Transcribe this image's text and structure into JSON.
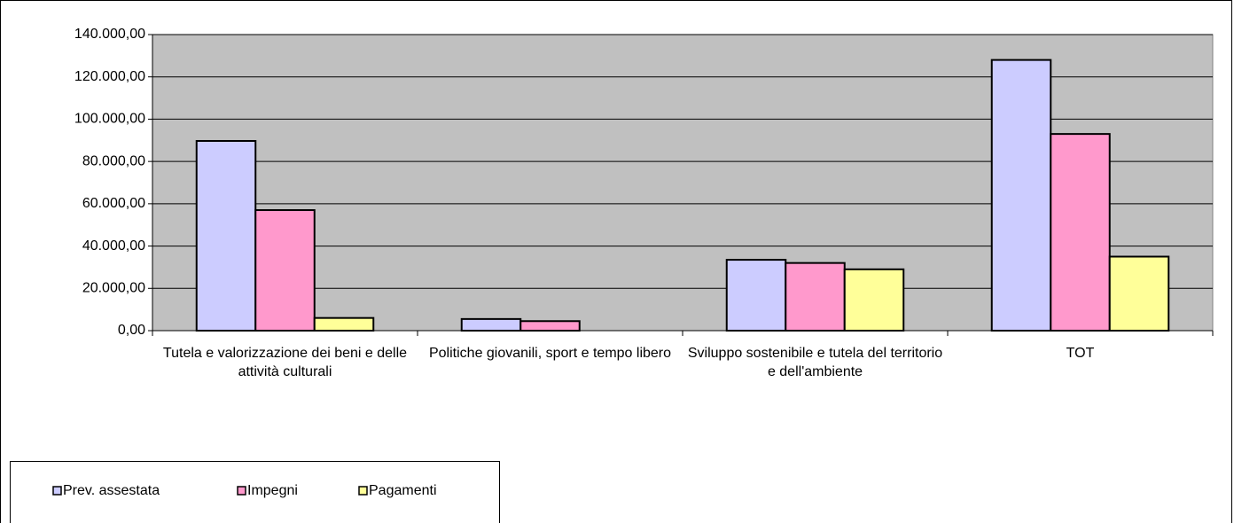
{
  "chart_data": {
    "type": "bar",
    "categories": [
      "Tutela e valorizzazione dei beni e delle attività culturali",
      "Politiche giovanili, sport e tempo libero",
      "Sviluppo sostenibile e tutela del territorio e dell'ambiente",
      "TOT"
    ],
    "series": [
      {
        "name": "Prev. assestata",
        "color": "#ccccff",
        "values": [
          89700,
          5500,
          33500,
          128000
        ]
      },
      {
        "name": "Impegni",
        "color": "#ff99cc",
        "values": [
          57000,
          4500,
          32000,
          93000
        ]
      },
      {
        "name": "Pagamenti",
        "color": "#ffff99",
        "values": [
          6000,
          0,
          29000,
          35000
        ]
      }
    ],
    "ylim": [
      0,
      140000
    ],
    "yticks": [
      {
        "value": 0,
        "label": "0,00"
      },
      {
        "value": 20000,
        "label": "20.000,00"
      },
      {
        "value": 40000,
        "label": "40.000,00"
      },
      {
        "value": 60000,
        "label": "60.000,00"
      },
      {
        "value": 80000,
        "label": "80.000,00"
      },
      {
        "value": 100000,
        "label": "100.000,00"
      },
      {
        "value": 120000,
        "label": "120.000,00"
      },
      {
        "value": 140000,
        "label": "140.000,00"
      }
    ],
    "grid": true,
    "legend": "bottom-left",
    "plot_background": "#c0c0c0"
  }
}
